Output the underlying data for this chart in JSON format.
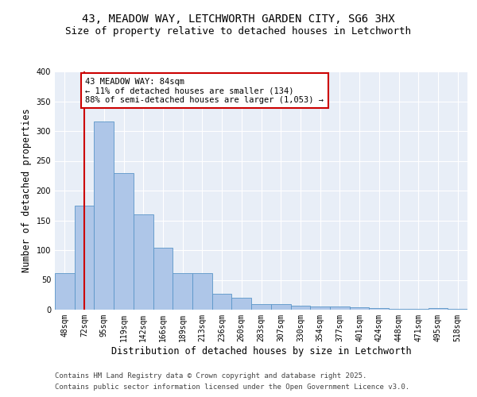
{
  "title_line1": "43, MEADOW WAY, LETCHWORTH GARDEN CITY, SG6 3HX",
  "title_line2": "Size of property relative to detached houses in Letchworth",
  "xlabel": "Distribution of detached houses by size in Letchworth",
  "ylabel": "Number of detached properties",
  "categories": [
    "48sqm",
    "72sqm",
    "95sqm",
    "119sqm",
    "142sqm",
    "166sqm",
    "189sqm",
    "213sqm",
    "236sqm",
    "260sqm",
    "283sqm",
    "307sqm",
    "330sqm",
    "354sqm",
    "377sqm",
    "401sqm",
    "424sqm",
    "448sqm",
    "471sqm",
    "495sqm",
    "518sqm"
  ],
  "values": [
    62,
    175,
    316,
    230,
    160,
    104,
    62,
    62,
    27,
    20,
    9,
    9,
    7,
    6,
    5,
    4,
    3,
    2,
    1,
    3,
    2
  ],
  "bar_color": "#aec6e8",
  "bar_edge_color": "#5a96c8",
  "vline_x": 1,
  "vline_color": "#cc0000",
  "annotation_text": "43 MEADOW WAY: 84sqm\n← 11% of detached houses are smaller (134)\n88% of semi-detached houses are larger (1,053) →",
  "annotation_box_color": "#ffffff",
  "annotation_box_edge_color": "#cc0000",
  "ylim": [
    0,
    400
  ],
  "yticks": [
    0,
    50,
    100,
    150,
    200,
    250,
    300,
    350,
    400
  ],
  "bg_color": "#e8eef7",
  "footer_line1": "Contains HM Land Registry data © Crown copyright and database right 2025.",
  "footer_line2": "Contains public sector information licensed under the Open Government Licence v3.0.",
  "title_fontsize": 10,
  "subtitle_fontsize": 9,
  "axis_label_fontsize": 8.5,
  "tick_fontsize": 7,
  "annotation_fontsize": 7.5,
  "footer_fontsize": 6.5
}
